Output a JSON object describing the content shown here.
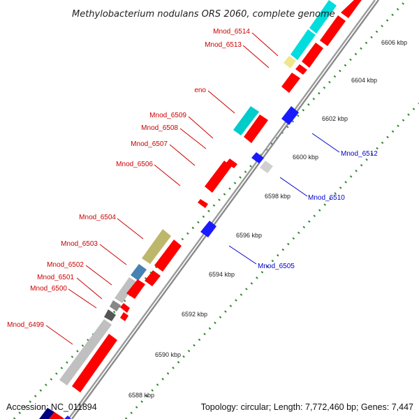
{
  "map": {
    "title": "Methylobacterium nodulans ORS 2060, complete genome",
    "accession": "Accession: NC_011894",
    "summary": "Topology: circular; Length: 7,772,460 bp; Genes: 7,447",
    "colors": {
      "background": "#ffffff",
      "backbone": "#9a9a9a",
      "tick_dots": "#2a8a2a",
      "label_forward": "#cc0000",
      "label_reverse": "#0000cc",
      "cds": "#ff0000",
      "cds_reverse": "#1a1aff",
      "rna": "#00dddd",
      "pseudo": "#c0c0c0",
      "other": "#777777",
      "olive": "#bdb76b",
      "steelblue": "#4682b4",
      "yellow": "#f0e68c",
      "navy": "#000080"
    }
  },
  "scale": {
    "unit": "kbp",
    "ticks": [
      "6588 kbp",
      "6590 kbp",
      "6592 kbp",
      "6594 kbp",
      "6596 kbp",
      "6598 kbp",
      "6600 kbp",
      "6602 kbp",
      "6604 kbp",
      "6606 kbp"
    ]
  },
  "genes": {
    "forward": [
      "Mnod_6514",
      "Mnod_6513",
      "eno",
      "Mnod_6509",
      "Mnod_6508",
      "Mnod_6507",
      "Mnod_6506",
      "Mnod_6504",
      "Mnod_6503",
      "Mnod_6502",
      "Mnod_6501",
      "Mnod_6500",
      "Mnod_6499"
    ],
    "reverse": [
      "Mnod_6512",
      "Mnod_6510",
      "Mnod_6505"
    ]
  }
}
